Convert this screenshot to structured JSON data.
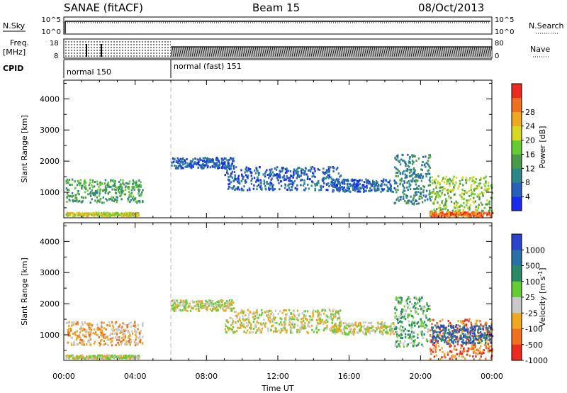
{
  "header": {
    "station": "SANAE (fitACF)",
    "beam": "Beam 15",
    "date": "08/Oct/2013"
  },
  "status_panels": {
    "nsky_label": "N.Sky",
    "nsearch_label": "N.Search",
    "noise_ticks": [
      "10^5",
      "10^0"
    ],
    "freq_label": "Freq.",
    "freq_unit": "[MHz]",
    "freq_ticks": [
      "18",
      "8"
    ],
    "nave_label": "Nave",
    "nave_ticks": [
      "80",
      "0"
    ],
    "cpid_label": "CPID",
    "modes": [
      {
        "label": "normal 150",
        "start": 0,
        "end": 6
      },
      {
        "label": "normal (fast) 151",
        "start": 6,
        "end": 24
      }
    ]
  },
  "chart_data": [
    {
      "type": "heatmap",
      "xlabel": "Time UT",
      "ylabel": "Slant Range [km]",
      "x_ticks": [
        "00:00",
        "04:00",
        "08:00",
        "12:00",
        "16:00",
        "20:00",
        "00:00"
      ],
      "xlim": [
        0,
        24
      ],
      "ylim": [
        180,
        4600
      ],
      "y_ticks": [
        1000,
        2000,
        3000,
        4000
      ],
      "colorbar": {
        "label": "Power [dB]",
        "ticks": [
          "4",
          "8",
          "12",
          "16",
          "20",
          "24",
          "28"
        ],
        "colors": [
          "#1a2cf0",
          "#2860c0",
          "#2a8888",
          "#4a9a4a",
          "#66cc33",
          "#d8d820",
          "#f0a820",
          "#f07020",
          "#ee2a20"
        ]
      },
      "clusters": [
        {
          "t0": 0.1,
          "t1": 4.4,
          "r0": 650,
          "r1": 1400,
          "level": 3
        },
        {
          "t0": 0.1,
          "t1": 4.2,
          "r0": 220,
          "r1": 330,
          "level": 5
        },
        {
          "t0": 6.0,
          "t1": 9.5,
          "r0": 1750,
          "r1": 2100,
          "level": 1
        },
        {
          "t0": 9.0,
          "t1": 15.5,
          "r0": 1050,
          "r1": 1800,
          "level": 1
        },
        {
          "t0": 15.0,
          "t1": 18.5,
          "r0": 1000,
          "r1": 1400,
          "level": 1
        },
        {
          "t0": 18.5,
          "t1": 20.5,
          "r0": 600,
          "r1": 2200,
          "level": 2
        },
        {
          "t0": 20.5,
          "t1": 24.0,
          "r0": 200,
          "r1": 1500,
          "level": 4
        },
        {
          "t0": 20.5,
          "t1": 24.0,
          "r0": 200,
          "r1": 350,
          "level": 7
        }
      ]
    },
    {
      "type": "heatmap",
      "xlabel": "Time UT",
      "ylabel": "Slant Range [km]",
      "x_ticks": [
        "00:00",
        "04:00",
        "08:00",
        "12:00",
        "16:00",
        "20:00",
        "00:00"
      ],
      "xlim": [
        0,
        24
      ],
      "ylim": [
        180,
        4600
      ],
      "y_ticks": [
        1000,
        2000,
        3000,
        4000
      ],
      "colorbar": {
        "label": "Velocity [m s",
        "label_sup": "-1",
        "label_end": "]",
        "ticks": [
          "1000",
          "500",
          "100",
          "25",
          "-25",
          "-100",
          "-500",
          "-1000"
        ],
        "colors": [
          "#2a44d0",
          "#2a70a8",
          "#2a8a66",
          "#66cc33",
          "#c8c8c8",
          "#f0a820",
          "#f07020",
          "#ee2a20"
        ]
      },
      "clusters": [
        {
          "t0": 0.1,
          "t1": 4.4,
          "r0": 650,
          "r1": 1400,
          "level": 5
        },
        {
          "t0": 0.1,
          "t1": 4.2,
          "r0": 220,
          "r1": 330,
          "level": 4
        },
        {
          "t0": 6.0,
          "t1": 9.5,
          "r0": 1750,
          "r1": 2100,
          "level": 4
        },
        {
          "t0": 9.0,
          "t1": 15.5,
          "r0": 1050,
          "r1": 1800,
          "level": 4
        },
        {
          "t0": 15.0,
          "t1": 18.5,
          "r0": 1000,
          "r1": 1400,
          "level": 4
        },
        {
          "t0": 18.5,
          "t1": 20.5,
          "r0": 600,
          "r1": 2200,
          "level": 3
        },
        {
          "t0": 20.5,
          "t1": 24.0,
          "r0": 200,
          "r1": 1500,
          "level": 6
        },
        {
          "t0": 20.5,
          "t1": 24.0,
          "r0": 700,
          "r1": 1300,
          "level": 1
        }
      ]
    }
  ]
}
